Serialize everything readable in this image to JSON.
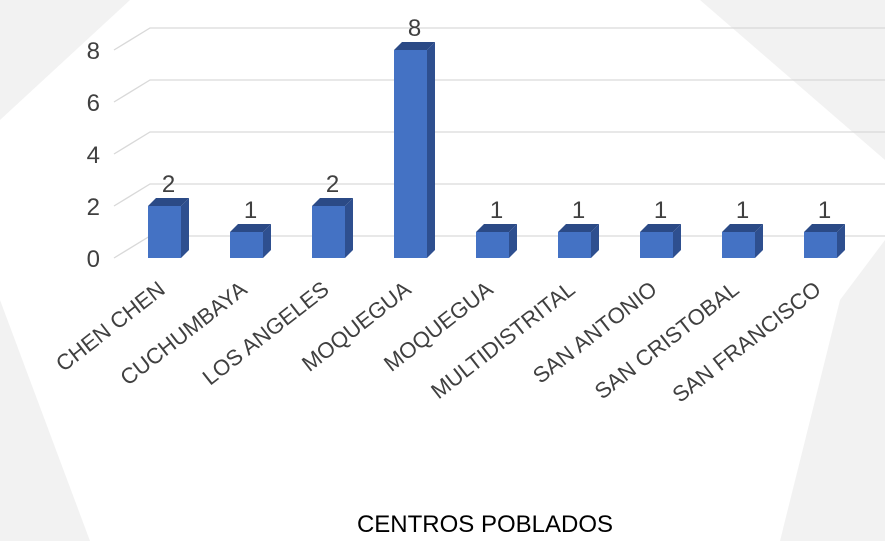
{
  "chart_data": {
    "type": "bar",
    "title": "",
    "xlabel": "CENTROS POBLADOS",
    "ylabel": "",
    "categories": [
      "CHEN CHEN",
      "CUCHUMBAYA",
      "LOS ANGELES",
      "MOQUEGUA",
      "MOQUEGUA",
      "MULTIDISTRITAL",
      "SAN ANTONIO",
      "SAN CRISTOBAL",
      "SAN FRANCISCO"
    ],
    "values": [
      2,
      1,
      2,
      8,
      1,
      1,
      1,
      1,
      1
    ],
    "data_labels": [
      "2",
      "1",
      "2",
      "8",
      "1",
      "1",
      "1",
      "1",
      "1"
    ],
    "y_ticks": [
      "0",
      "2",
      "4",
      "6",
      "8"
    ],
    "ylim": [
      0,
      8
    ],
    "grid": true,
    "legend": "none",
    "style": "3d-column"
  },
  "colors": {
    "bar_front": "#4472C4",
    "bar_side": "#2E4F8F",
    "bar_top": "#2B4A86",
    "grid": "#D9D9D9",
    "text": "#404040",
    "watermark": "#F2F2F2"
  }
}
